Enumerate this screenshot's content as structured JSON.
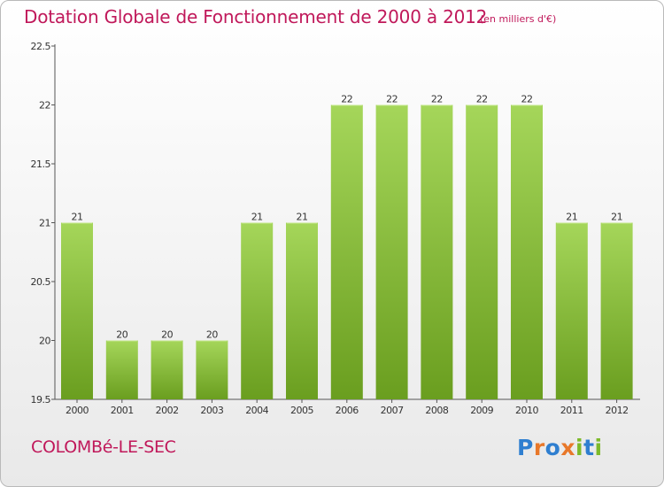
{
  "title": "Dotation Globale de Fonctionnement de 2000 à 2012",
  "unit_note": "(en milliers d'€)",
  "commune": "COLOMBé-LE-SEC",
  "logo": {
    "text": "Proxiti",
    "letter_colors": [
      "#2f7fd0",
      "#e8782a",
      "#2f7fd0",
      "#e8782a",
      "#7dba2a",
      "#2f7fd0",
      "#7dba2a"
    ]
  },
  "colors": {
    "bar_light": "#a5d65a",
    "bar_dark": "#6a9e1f",
    "text_accent": "#c0185a",
    "axis": "#555555"
  },
  "chart_data": {
    "type": "bar",
    "categories": [
      "2000",
      "2001",
      "2002",
      "2003",
      "2004",
      "2005",
      "2006",
      "2007",
      "2008",
      "2009",
      "2010",
      "2011",
      "2012"
    ],
    "values": [
      21,
      20,
      20,
      20,
      21,
      21,
      22,
      22,
      22,
      22,
      22,
      21,
      21
    ],
    "data_labels": [
      "21",
      "20",
      "20",
      "20",
      "21",
      "21",
      "22",
      "22",
      "22",
      "22",
      "22",
      "21",
      "21"
    ],
    "ylim": [
      19.5,
      22.5
    ],
    "yticks": [
      "19.5",
      "20",
      "20.5",
      "21",
      "21.5",
      "22",
      "22.5"
    ],
    "ytick_values": [
      19.5,
      20,
      20.5,
      21,
      21.5,
      22,
      22.5
    ],
    "grid": false,
    "legend": "none"
  }
}
